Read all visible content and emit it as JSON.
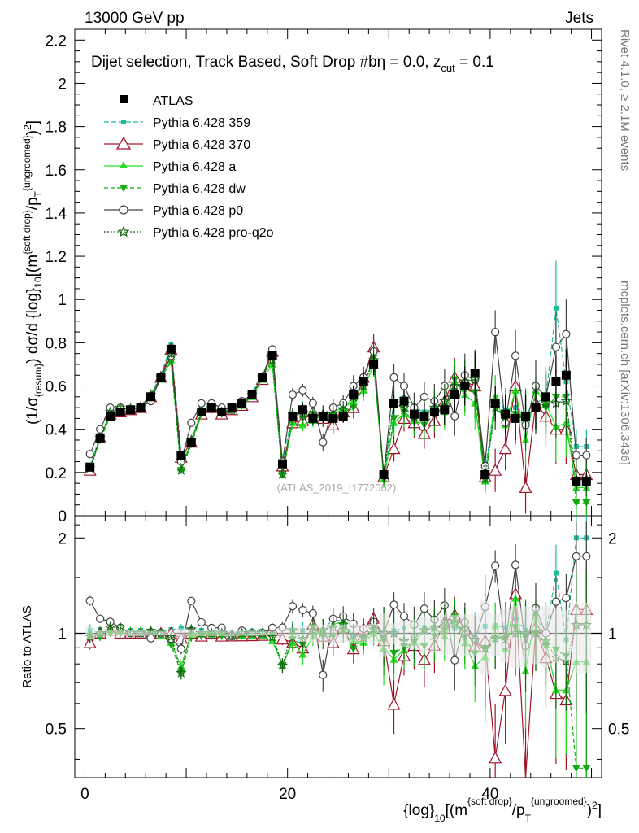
{
  "header": {
    "left": "13000 GeV pp",
    "right": "Jets"
  },
  "side_labels": {
    "rivet": "Rivet 4.1.0, ≥ 2.1M events",
    "mcplots": "mcplots.cern.ch [arXiv:1306.3436]"
  },
  "watermark": "(ATLAS_2019_I1772062)",
  "colors": {
    "atlas": "#000000",
    "p359": "#1abc9c",
    "p370": "#a0142a",
    "pa": "#22dd22",
    "pdw": "#11aa11",
    "pp0": "#444444",
    "pq2o": "#116611"
  },
  "chart_data": {
    "type": "line",
    "title": "Dijet selection, Track Based, Soft Drop #b",
    "title_eta": "η = 0.0, z",
    "title_cut_sub": "cut",
    "title_cut_val": " = 0.1",
    "ylabel": "(1/σ_{resum}) dσ/d {log}_{10}[(m^{soft drop}/p_T^{ungroomed})^2]",
    "ratio_ylabel": "Ratio to ATLAS",
    "xlabel": "{log}_{10}[(m^{soft drop}/p_T^{ungroomed})^2]",
    "xlim": [
      -1,
      51
    ],
    "ylim": [
      0,
      2.25
    ],
    "ratio_ylim": [
      0.35,
      2.35
    ],
    "x_ticks": [
      "0",
      "20",
      "40"
    ],
    "y_ticks": [
      "0",
      "0.2",
      "0.4",
      "0.6",
      "0.8",
      "1",
      "1.2",
      "1.4",
      "1.6",
      "1.8",
      "2",
      "2.2"
    ],
    "ratio_ticks": [
      "0.5",
      "1",
      "2"
    ],
    "x": [
      0.5,
      1.5,
      2.5,
      3.5,
      4.5,
      5.5,
      6.5,
      7.5,
      8.5,
      9.5,
      10.5,
      11.5,
      12.5,
      13.5,
      14.5,
      15.5,
      16.5,
      17.5,
      18.5,
      19.5,
      20.5,
      21.5,
      22.5,
      23.5,
      24.5,
      25.5,
      26.5,
      27.5,
      28.5,
      29.5,
      30.5,
      31.5,
      32.5,
      33.5,
      34.5,
      35.5,
      36.5,
      37.5,
      38.5,
      39.5,
      40.5,
      41.5,
      42.5,
      43.5,
      44.5,
      45.5,
      46.5,
      47.5,
      48.5,
      49.5
    ],
    "series": [
      {
        "name": "ATLAS",
        "key": "atlas",
        "marker": "square-filled",
        "dash": "",
        "values": [
          0.225,
          0.36,
          0.46,
          0.48,
          0.49,
          0.5,
          0.55,
          0.64,
          0.77,
          0.28,
          0.34,
          0.48,
          0.5,
          0.48,
          0.5,
          0.52,
          0.56,
          0.64,
          0.74,
          0.24,
          0.46,
          0.49,
          0.45,
          0.46,
          0.45,
          0.46,
          0.56,
          0.62,
          0.7,
          0.19,
          0.52,
          0.53,
          0.47,
          0.46,
          0.48,
          0.49,
          0.56,
          0.6,
          0.66,
          0.19,
          0.52,
          0.47,
          0.45,
          0.46,
          0.5,
          0.55,
          0.62,
          0.65,
          0.16,
          0.16
        ],
        "err": [
          0.01,
          0.01,
          0.01,
          0.01,
          0.01,
          0.01,
          0.01,
          0.01,
          0.01,
          0.01,
          0.01,
          0.01,
          0.01,
          0.01,
          0.01,
          0.01,
          0.01,
          0.01,
          0.01,
          0.01,
          0.02,
          0.03,
          0.03,
          0.03,
          0.03,
          0.03,
          0.04,
          0.04,
          0.05,
          0.03,
          0.04,
          0.05,
          0.05,
          0.06,
          0.06,
          0.07,
          0.08,
          0.09,
          0.1,
          0.05,
          0.08,
          0.09,
          0.1,
          0.1,
          0.1,
          0.12,
          0.12,
          0.12,
          0.04,
          0.04
        ]
      },
      {
        "name": "Pythia 6.428 359",
        "key": "p359",
        "marker": "square-small",
        "dash": "6,3",
        "values": [
          0.23,
          0.37,
          0.47,
          0.49,
          0.5,
          0.51,
          0.56,
          0.65,
          0.79,
          0.29,
          0.35,
          0.49,
          0.51,
          0.49,
          0.5,
          0.53,
          0.57,
          0.65,
          0.75,
          0.25,
          0.47,
          0.5,
          0.47,
          0.47,
          0.5,
          0.5,
          0.55,
          0.62,
          0.71,
          0.19,
          0.53,
          0.55,
          0.5,
          0.48,
          0.5,
          0.52,
          0.58,
          0.62,
          0.65,
          0.2,
          0.55,
          0.49,
          0.5,
          0.47,
          0.52,
          0.55,
          0.96,
          0.62,
          0.32,
          0.32
        ],
        "err": [
          0.01,
          0.01,
          0.01,
          0.01,
          0.01,
          0.01,
          0.01,
          0.01,
          0.01,
          0.01,
          0.01,
          0.01,
          0.01,
          0.01,
          0.01,
          0.01,
          0.01,
          0.01,
          0.01,
          0.01,
          0.03,
          0.03,
          0.03,
          0.04,
          0.04,
          0.04,
          0.05,
          0.05,
          0.06,
          0.04,
          0.06,
          0.06,
          0.07,
          0.07,
          0.08,
          0.08,
          0.09,
          0.1,
          0.12,
          0.06,
          0.1,
          0.1,
          0.12,
          0.12,
          0.12,
          0.14,
          0.22,
          0.16,
          0.08,
          0.08
        ]
      },
      {
        "name": "Pythia 6.428 370",
        "key": "p370",
        "marker": "triangle-open",
        "dash": "",
        "values": [
          0.21,
          0.36,
          0.47,
          0.48,
          0.49,
          0.5,
          0.55,
          0.64,
          0.77,
          0.27,
          0.34,
          0.47,
          0.5,
          0.47,
          0.49,
          0.51,
          0.55,
          0.63,
          0.76,
          0.23,
          0.43,
          0.44,
          0.48,
          0.45,
          0.42,
          0.48,
          0.5,
          0.64,
          0.78,
          0.18,
          0.31,
          0.45,
          0.43,
          0.38,
          0.44,
          0.53,
          0.64,
          0.62,
          0.6,
          0.18,
          0.21,
          0.31,
          0.6,
          0.13,
          0.52,
          0.46,
          0.4,
          0.4,
          0.19,
          0.19
        ],
        "err": [
          0.01,
          0.01,
          0.01,
          0.01,
          0.01,
          0.01,
          0.01,
          0.01,
          0.01,
          0.01,
          0.01,
          0.01,
          0.01,
          0.01,
          0.01,
          0.01,
          0.01,
          0.01,
          0.01,
          0.01,
          0.03,
          0.03,
          0.03,
          0.04,
          0.04,
          0.04,
          0.05,
          0.05,
          0.06,
          0.04,
          0.06,
          0.06,
          0.07,
          0.07,
          0.08,
          0.08,
          0.09,
          0.1,
          0.12,
          0.06,
          0.1,
          0.1,
          0.12,
          0.12,
          0.12,
          0.14,
          0.16,
          0.16,
          0.08,
          0.08
        ]
      },
      {
        "name": "Pythia 6.428 a",
        "key": "pa",
        "marker": "triangle-filled",
        "dash": "",
        "values": [
          0.22,
          0.36,
          0.47,
          0.49,
          0.5,
          0.51,
          0.55,
          0.63,
          0.72,
          0.22,
          0.34,
          0.48,
          0.5,
          0.48,
          0.49,
          0.51,
          0.55,
          0.63,
          0.7,
          0.19,
          0.43,
          0.42,
          0.44,
          0.47,
          0.48,
          0.5,
          0.53,
          0.58,
          0.7,
          0.17,
          0.43,
          0.47,
          0.44,
          0.47,
          0.5,
          0.48,
          0.62,
          0.56,
          0.52,
          0.16,
          0.55,
          0.42,
          0.58,
          0.35,
          0.58,
          0.52,
          0.41,
          0.43,
          0.13,
          0.13
        ],
        "err": [
          0.01,
          0.01,
          0.01,
          0.01,
          0.01,
          0.01,
          0.01,
          0.01,
          0.01,
          0.01,
          0.01,
          0.01,
          0.01,
          0.01,
          0.01,
          0.01,
          0.01,
          0.01,
          0.01,
          0.01,
          0.03,
          0.03,
          0.03,
          0.04,
          0.04,
          0.04,
          0.05,
          0.05,
          0.06,
          0.04,
          0.06,
          0.06,
          0.07,
          0.07,
          0.08,
          0.08,
          0.09,
          0.1,
          0.12,
          0.06,
          0.1,
          0.1,
          0.12,
          0.12,
          0.12,
          0.14,
          0.16,
          0.16,
          0.08,
          0.08
        ]
      },
      {
        "name": "Pythia 6.428 dw",
        "key": "pdw",
        "marker": "triangle-down",
        "dash": "5,3",
        "values": [
          0.22,
          0.35,
          0.46,
          0.48,
          0.49,
          0.5,
          0.55,
          0.64,
          0.71,
          0.21,
          0.33,
          0.47,
          0.49,
          0.47,
          0.49,
          0.51,
          0.56,
          0.64,
          0.73,
          0.19,
          0.44,
          0.45,
          0.47,
          0.45,
          0.44,
          0.47,
          0.5,
          0.6,
          0.73,
          0.18,
          0.45,
          0.48,
          0.44,
          0.42,
          0.47,
          0.5,
          0.63,
          0.58,
          0.57,
          0.17,
          0.5,
          0.45,
          0.47,
          0.45,
          0.5,
          0.5,
          0.55,
          0.55,
          0.06,
          0.06
        ],
        "err": [
          0.01,
          0.01,
          0.01,
          0.01,
          0.01,
          0.01,
          0.01,
          0.01,
          0.01,
          0.01,
          0.01,
          0.01,
          0.01,
          0.01,
          0.01,
          0.01,
          0.01,
          0.01,
          0.01,
          0.01,
          0.03,
          0.03,
          0.03,
          0.04,
          0.04,
          0.04,
          0.05,
          0.05,
          0.06,
          0.04,
          0.06,
          0.06,
          0.07,
          0.07,
          0.08,
          0.08,
          0.09,
          0.1,
          0.12,
          0.06,
          0.1,
          0.1,
          0.12,
          0.12,
          0.12,
          0.14,
          0.16,
          0.16,
          0.08,
          0.08
        ]
      },
      {
        "name": "Pythia 6.428 p0",
        "key": "pp0",
        "marker": "circle-open",
        "dash": "",
        "values": [
          0.285,
          0.4,
          0.5,
          0.5,
          0.49,
          0.5,
          0.53,
          0.64,
          0.74,
          0.25,
          0.43,
          0.52,
          0.52,
          0.5,
          0.49,
          0.53,
          0.56,
          0.64,
          0.77,
          0.25,
          0.56,
          0.58,
          0.52,
          0.34,
          0.5,
          0.52,
          0.6,
          0.64,
          0.76,
          0.19,
          0.64,
          0.6,
          0.5,
          0.55,
          0.53,
          0.6,
          0.46,
          0.65,
          0.63,
          0.23,
          0.85,
          0.43,
          0.74,
          0.42,
          0.6,
          0.55,
          0.78,
          0.84,
          0.28,
          0.28
        ],
        "err": [
          0.01,
          0.01,
          0.01,
          0.01,
          0.01,
          0.01,
          0.01,
          0.01,
          0.01,
          0.01,
          0.01,
          0.01,
          0.01,
          0.01,
          0.01,
          0.01,
          0.01,
          0.01,
          0.01,
          0.01,
          0.03,
          0.03,
          0.03,
          0.04,
          0.04,
          0.04,
          0.05,
          0.05,
          0.06,
          0.04,
          0.06,
          0.06,
          0.07,
          0.07,
          0.08,
          0.08,
          0.09,
          0.1,
          0.12,
          0.06,
          0.1,
          0.1,
          0.12,
          0.12,
          0.12,
          0.14,
          0.16,
          0.16,
          0.08,
          0.08
        ]
      },
      {
        "name": "Pythia 6.428 pro-q2o",
        "key": "pq2o",
        "marker": "star",
        "dash": "2,2",
        "values": [
          0.22,
          0.36,
          0.48,
          0.5,
          0.49,
          0.5,
          0.56,
          0.64,
          0.75,
          0.21,
          0.35,
          0.48,
          0.5,
          0.48,
          0.49,
          0.52,
          0.56,
          0.64,
          0.72,
          0.19,
          0.47,
          0.47,
          0.46,
          0.47,
          0.47,
          0.49,
          0.55,
          0.6,
          0.72,
          0.19,
          0.52,
          0.5,
          0.46,
          0.47,
          0.5,
          0.53,
          0.6,
          0.62,
          0.63,
          0.17,
          0.5,
          0.46,
          0.45,
          0.46,
          0.5,
          0.52,
          0.52,
          0.53,
          0.17,
          0.17
        ],
        "err": [
          0.01,
          0.01,
          0.01,
          0.01,
          0.01,
          0.01,
          0.01,
          0.01,
          0.01,
          0.01,
          0.01,
          0.01,
          0.01,
          0.01,
          0.01,
          0.01,
          0.01,
          0.01,
          0.01,
          0.01,
          0.03,
          0.03,
          0.03,
          0.04,
          0.04,
          0.04,
          0.05,
          0.05,
          0.06,
          0.04,
          0.06,
          0.06,
          0.07,
          0.07,
          0.08,
          0.08,
          0.09,
          0.1,
          0.12,
          0.06,
          0.1,
          0.1,
          0.12,
          0.12,
          0.12,
          0.14,
          0.16,
          0.16,
          0.08,
          0.08
        ]
      }
    ]
  }
}
